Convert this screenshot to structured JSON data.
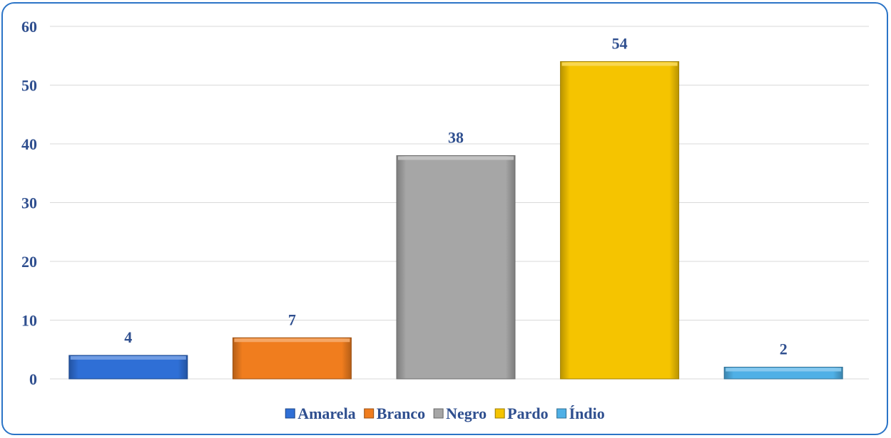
{
  "chart_data": {
    "type": "bar",
    "categories": [
      "Amarela",
      "Branco",
      "Negro",
      "Pardo",
      "Índio"
    ],
    "values": [
      4,
      7,
      38,
      54,
      2
    ],
    "colors": [
      "#2f6fd6",
      "#f07d1e",
      "#a6a6a6",
      "#f5c400",
      "#4fb0e6"
    ],
    "yticks": [
      0,
      10,
      20,
      30,
      40,
      50,
      60
    ],
    "ylim": [
      0,
      60
    ],
    "grid": true,
    "legend": "bottom",
    "title": "",
    "xlabel": "",
    "ylabel": ""
  }
}
